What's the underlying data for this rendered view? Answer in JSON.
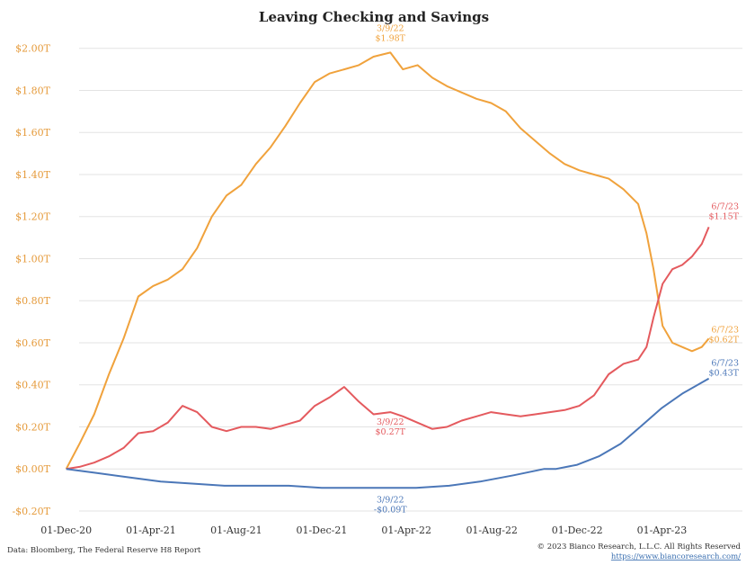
{
  "chart_data": {
    "type": "line",
    "title": "Leaving Checking and Savings",
    "xlabel": "",
    "ylabel": "",
    "ylim": [
      -0.2,
      2.05
    ],
    "yticks": [
      {
        "value": -0.2,
        "label": "-$0.20T"
      },
      {
        "value": 0.0,
        "label": "$0.00T"
      },
      {
        "value": 0.2,
        "label": "$0.20T"
      },
      {
        "value": 0.4,
        "label": "$0.40T"
      },
      {
        "value": 0.6,
        "label": "$0.60T"
      },
      {
        "value": 0.8,
        "label": "$0.80T"
      },
      {
        "value": 1.0,
        "label": "$1.00T"
      },
      {
        "value": 1.2,
        "label": "$1.20T"
      },
      {
        "value": 1.4,
        "label": "$1.40T"
      },
      {
        "value": 1.6,
        "label": "$1.60T"
      },
      {
        "value": 1.8,
        "label": "$1.80T"
      },
      {
        "value": 2.0,
        "label": "$2.00T"
      }
    ],
    "xticks": [
      "01-Dec-20",
      "01-Apr-21",
      "01-Aug-21",
      "01-Dec-21",
      "01-Apr-22",
      "01-Aug-22",
      "01-Dec-22",
      "01-Apr-23"
    ],
    "xlim": [
      "2020-11-16",
      "2023-07-25"
    ],
    "grid": "horizontal",
    "series": [
      {
        "color": "#f0a23c",
        "x": [
          "2020-12-01",
          "2020-12-20",
          "2021-01-10",
          "2021-01-31",
          "2021-02-21",
          "2021-03-14",
          "2021-04-04",
          "2021-04-25",
          "2021-05-16",
          "2021-06-06",
          "2021-06-27",
          "2021-07-18",
          "2021-08-08",
          "2021-08-29",
          "2021-09-19",
          "2021-10-10",
          "2021-10-31",
          "2021-11-21",
          "2021-12-12",
          "2022-01-02",
          "2022-01-23",
          "2022-02-13",
          "2022-03-09",
          "2022-03-27",
          "2022-04-17",
          "2022-05-08",
          "2022-05-29",
          "2022-06-19",
          "2022-07-10",
          "2022-07-31",
          "2022-08-21",
          "2022-09-11",
          "2022-10-02",
          "2022-10-23",
          "2022-11-13",
          "2022-12-04",
          "2022-12-25",
          "2023-01-15",
          "2023-02-05",
          "2023-02-26",
          "2023-03-10",
          "2023-03-20",
          "2023-04-02",
          "2023-04-16",
          "2023-04-30",
          "2023-05-14",
          "2023-05-28",
          "2023-06-07"
        ],
        "values": [
          0.0,
          0.12,
          0.26,
          0.45,
          0.62,
          0.82,
          0.87,
          0.9,
          0.95,
          1.05,
          1.2,
          1.3,
          1.35,
          1.45,
          1.53,
          1.63,
          1.74,
          1.84,
          1.88,
          1.9,
          1.92,
          1.96,
          1.98,
          1.9,
          1.92,
          1.86,
          1.82,
          1.79,
          1.76,
          1.74,
          1.7,
          1.62,
          1.56,
          1.5,
          1.45,
          1.42,
          1.4,
          1.38,
          1.33,
          1.26,
          1.12,
          0.95,
          0.68,
          0.6,
          0.58,
          0.56,
          0.58,
          0.62
        ]
      },
      {
        "color": "#e45a5e",
        "x": [
          "2020-12-01",
          "2020-12-20",
          "2021-01-10",
          "2021-01-31",
          "2021-02-21",
          "2021-03-14",
          "2021-04-04",
          "2021-04-25",
          "2021-05-16",
          "2021-06-06",
          "2021-06-27",
          "2021-07-18",
          "2021-08-08",
          "2021-08-29",
          "2021-09-19",
          "2021-10-10",
          "2021-10-31",
          "2021-11-21",
          "2021-12-12",
          "2022-01-02",
          "2022-01-23",
          "2022-02-13",
          "2022-03-09",
          "2022-03-27",
          "2022-04-17",
          "2022-05-08",
          "2022-05-29",
          "2022-06-19",
          "2022-07-10",
          "2022-07-31",
          "2022-08-21",
          "2022-09-11",
          "2022-10-02",
          "2022-10-23",
          "2022-11-13",
          "2022-12-04",
          "2022-12-25",
          "2023-01-15",
          "2023-02-05",
          "2023-02-26",
          "2023-03-10",
          "2023-03-20",
          "2023-04-02",
          "2023-04-16",
          "2023-04-30",
          "2023-05-14",
          "2023-05-28",
          "2023-06-07"
        ],
        "values": [
          0.0,
          0.01,
          0.03,
          0.06,
          0.1,
          0.17,
          0.18,
          0.22,
          0.3,
          0.27,
          0.2,
          0.18,
          0.2,
          0.2,
          0.19,
          0.21,
          0.23,
          0.3,
          0.34,
          0.39,
          0.32,
          0.26,
          0.27,
          0.25,
          0.22,
          0.19,
          0.2,
          0.23,
          0.25,
          0.27,
          0.26,
          0.25,
          0.26,
          0.27,
          0.28,
          0.3,
          0.35,
          0.45,
          0.5,
          0.52,
          0.58,
          0.72,
          0.88,
          0.95,
          0.97,
          1.01,
          1.07,
          1.15
        ]
      },
      {
        "color": "#4b77b8",
        "x": [
          "2020-12-01",
          "2021-01-15",
          "2021-03-01",
          "2021-04-15",
          "2021-06-01",
          "2021-07-15",
          "2021-09-01",
          "2021-10-15",
          "2021-12-01",
          "2022-01-15",
          "2022-03-09",
          "2022-04-15",
          "2022-06-01",
          "2022-07-15",
          "2022-09-01",
          "2022-10-15",
          "2022-11-01",
          "2022-12-01",
          "2023-01-01",
          "2023-02-01",
          "2023-03-01",
          "2023-04-01",
          "2023-05-01",
          "2023-06-07"
        ],
        "values": [
          0.0,
          -0.02,
          -0.04,
          -0.06,
          -0.07,
          -0.08,
          -0.08,
          -0.08,
          -0.09,
          -0.09,
          -0.09,
          -0.09,
          -0.08,
          -0.06,
          -0.03,
          0.0,
          0.0,
          0.02,
          0.06,
          0.12,
          0.2,
          0.29,
          0.36,
          0.43
        ]
      }
    ],
    "annotations": [
      {
        "x": "2022-03-09",
        "y": 1.98,
        "color": "#f0a23c",
        "lines": [
          "3/9/22",
          "$1.98T"
        ]
      },
      {
        "x": "2022-03-09",
        "y": 0.27,
        "color": "#e45a5e",
        "lines": [
          "3/9/22",
          "$0.27T"
        ]
      },
      {
        "x": "2022-03-09",
        "y": -0.09,
        "color": "#4b77b8",
        "lines": [
          "3/9/22",
          "-$0.09T"
        ]
      },
      {
        "x": "2023-06-07",
        "y": 1.15,
        "color": "#e45a5e",
        "lines": [
          "6/7/23",
          "$1.15T"
        ]
      },
      {
        "x": "2023-06-07",
        "y": 0.62,
        "color": "#f0a23c",
        "lines": [
          "6/7/23",
          "$0.62T"
        ]
      },
      {
        "x": "2023-06-07",
        "y": 0.43,
        "color": "#4b77b8",
        "lines": [
          "6/7/23",
          "$0.43T"
        ]
      }
    ]
  },
  "footer": {
    "source": "Data: Bloomberg, The Federal Reserve H8 Report",
    "copyright": "© 2023 Bianco Research, L.L.C. All Rights Reserved",
    "url": "https://www.biancoresearch.com/"
  }
}
